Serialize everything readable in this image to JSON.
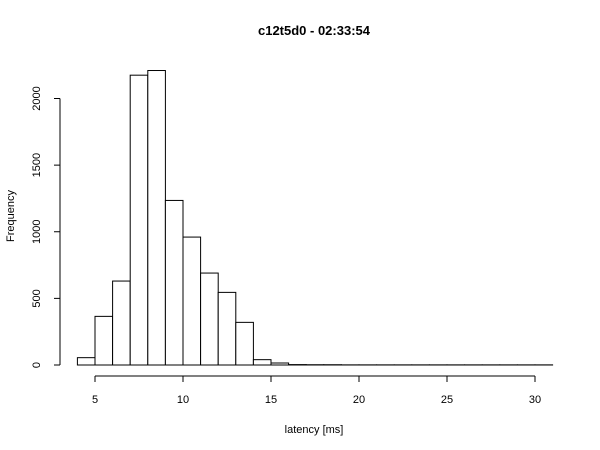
{
  "chart_data": {
    "type": "bar",
    "title": "c12t5d0 - 02:33:54",
    "xlabel": "latency [ms]",
    "ylabel": "Frequency",
    "xlim": [
      4,
      31
    ],
    "ylim": [
      0,
      2200
    ],
    "x_ticks": [
      5,
      10,
      15,
      20,
      25,
      30
    ],
    "y_ticks": [
      0,
      500,
      1000,
      1500,
      2000
    ],
    "bin_width": 1,
    "bins": [
      {
        "start": 4,
        "end": 5,
        "value": 55
      },
      {
        "start": 5,
        "end": 6,
        "value": 365
      },
      {
        "start": 6,
        "end": 7,
        "value": 630
      },
      {
        "start": 7,
        "end": 8,
        "value": 2175
      },
      {
        "start": 8,
        "end": 9,
        "value": 2210
      },
      {
        "start": 9,
        "end": 10,
        "value": 1235
      },
      {
        "start": 10,
        "end": 11,
        "value": 960
      },
      {
        "start": 11,
        "end": 12,
        "value": 690
      },
      {
        "start": 12,
        "end": 13,
        "value": 545
      },
      {
        "start": 13,
        "end": 14,
        "value": 320
      },
      {
        "start": 14,
        "end": 15,
        "value": 40
      },
      {
        "start": 15,
        "end": 16,
        "value": 15
      },
      {
        "start": 16,
        "end": 17,
        "value": 3
      },
      {
        "start": 17,
        "end": 18,
        "value": 2
      },
      {
        "start": 18,
        "end": 19,
        "value": 2
      },
      {
        "start": 19,
        "end": 20,
        "value": 1
      },
      {
        "start": 20,
        "end": 21,
        "value": 1
      },
      {
        "start": 21,
        "end": 22,
        "value": 1
      },
      {
        "start": 22,
        "end": 23,
        "value": 1
      },
      {
        "start": 23,
        "end": 24,
        "value": 1
      },
      {
        "start": 24,
        "end": 25,
        "value": 1
      },
      {
        "start": 25,
        "end": 26,
        "value": 1
      },
      {
        "start": 26,
        "end": 27,
        "value": 1
      },
      {
        "start": 27,
        "end": 28,
        "value": 1
      },
      {
        "start": 28,
        "end": 29,
        "value": 1
      },
      {
        "start": 29,
        "end": 30,
        "value": 1
      },
      {
        "start": 30,
        "end": 31,
        "value": 1
      }
    ],
    "grid": false
  }
}
